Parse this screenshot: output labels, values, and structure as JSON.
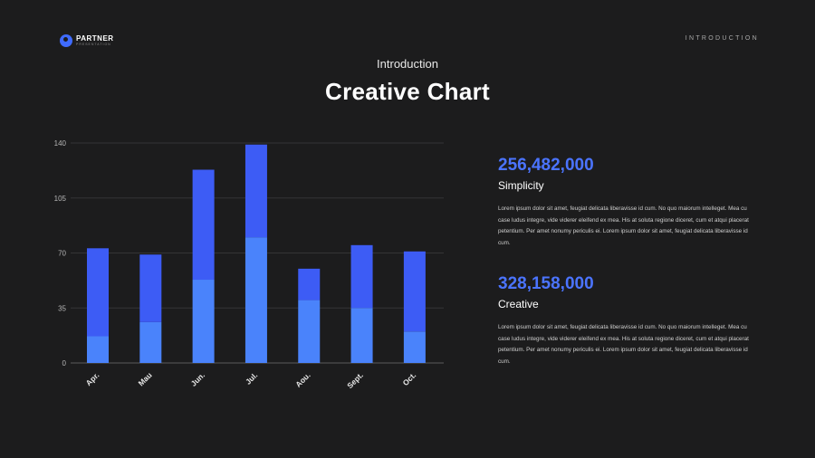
{
  "header": {
    "logo_name": "PARTNER",
    "logo_sub": "PRESENTATION",
    "section": "INTRODUCTION"
  },
  "subtitle": "Introduction",
  "title": "Creative Chart",
  "colors": {
    "background": "#1c1c1d",
    "series_dark": "#3d5cf5",
    "series_light": "#4a83fb",
    "accent": "#4b74ff"
  },
  "chart_data": {
    "type": "bar",
    "stacked": true,
    "categories": [
      "Apr.",
      "Mau",
      "Jun.",
      "Jul.",
      "Aou.",
      "Sept.",
      "Oct."
    ],
    "series": [
      {
        "values": [
          17,
          26,
          53,
          80,
          40,
          35,
          20
        ]
      },
      {
        "values": [
          56,
          43,
          70,
          59,
          20,
          40,
          51
        ]
      }
    ],
    "ylim": [
      0,
      140
    ],
    "yticks": [
      0,
      35,
      70,
      105,
      140
    ],
    "grid": true,
    "xlabel": "",
    "ylabel": ""
  },
  "stats": [
    {
      "value": "256,482,000",
      "label": "Simplicity",
      "body": "Lorem ipsum dolor sit amet, feugiat delicata liberavisse id cum. No quo maiorum intelleget. Mea cu case ludus integre, vide viderer eleifend ex mea. His at soluta regione diceret, cum et atqui placerat petentium. Per amet nonumy periculis ei. Lorem ipsum dolor sit amet, feugiat delicata liberavisse id cum."
    },
    {
      "value": "328,158,000",
      "label": "Creative",
      "body": "Lorem ipsum dolor sit amet, feugiat delicata liberavisse id cum. No quo maiorum intelleget. Mea cu case ludus integre, vide viderer eleifend ex mea. His at soluta regione diceret, cum et atqui placerat petentium. Per amet nonumy periculis ei. Lorem ipsum dolor sit amet, feugiat delicata liberavisse id cum."
    }
  ]
}
